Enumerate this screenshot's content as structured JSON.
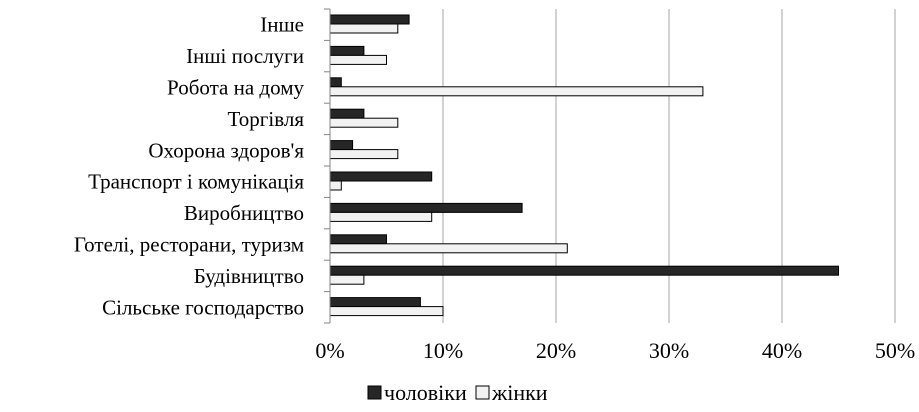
{
  "chart_data": {
    "type": "bar",
    "orientation": "horizontal",
    "title": "",
    "xlabel": "",
    "ylabel": "",
    "categories": [
      "Інше",
      "Інші послуги",
      "Робота на дому",
      "Торгівля",
      "Охорона здоров'я",
      "Транспорт і комунікація",
      "Виробництво",
      "Готелі, ресторани, туризм",
      "Будівництво",
      "Сільське господарство"
    ],
    "series": [
      {
        "name": "чоловіки",
        "color": "#262626",
        "values": [
          7,
          3,
          1,
          3,
          2,
          9,
          17,
          5,
          45,
          8
        ]
      },
      {
        "name": "жінки",
        "color": "#f2f2f2",
        "values": [
          6,
          5,
          33,
          6,
          6,
          1,
          9,
          21,
          3,
          10
        ]
      }
    ],
    "xlim": [
      0,
      50
    ],
    "ticks": [
      0,
      10,
      20,
      30,
      40,
      50
    ],
    "tick_labels": [
      "0%",
      "10%",
      "20%",
      "30%",
      "40%",
      "50%"
    ],
    "grid": true,
    "legend_position": "bottom"
  }
}
